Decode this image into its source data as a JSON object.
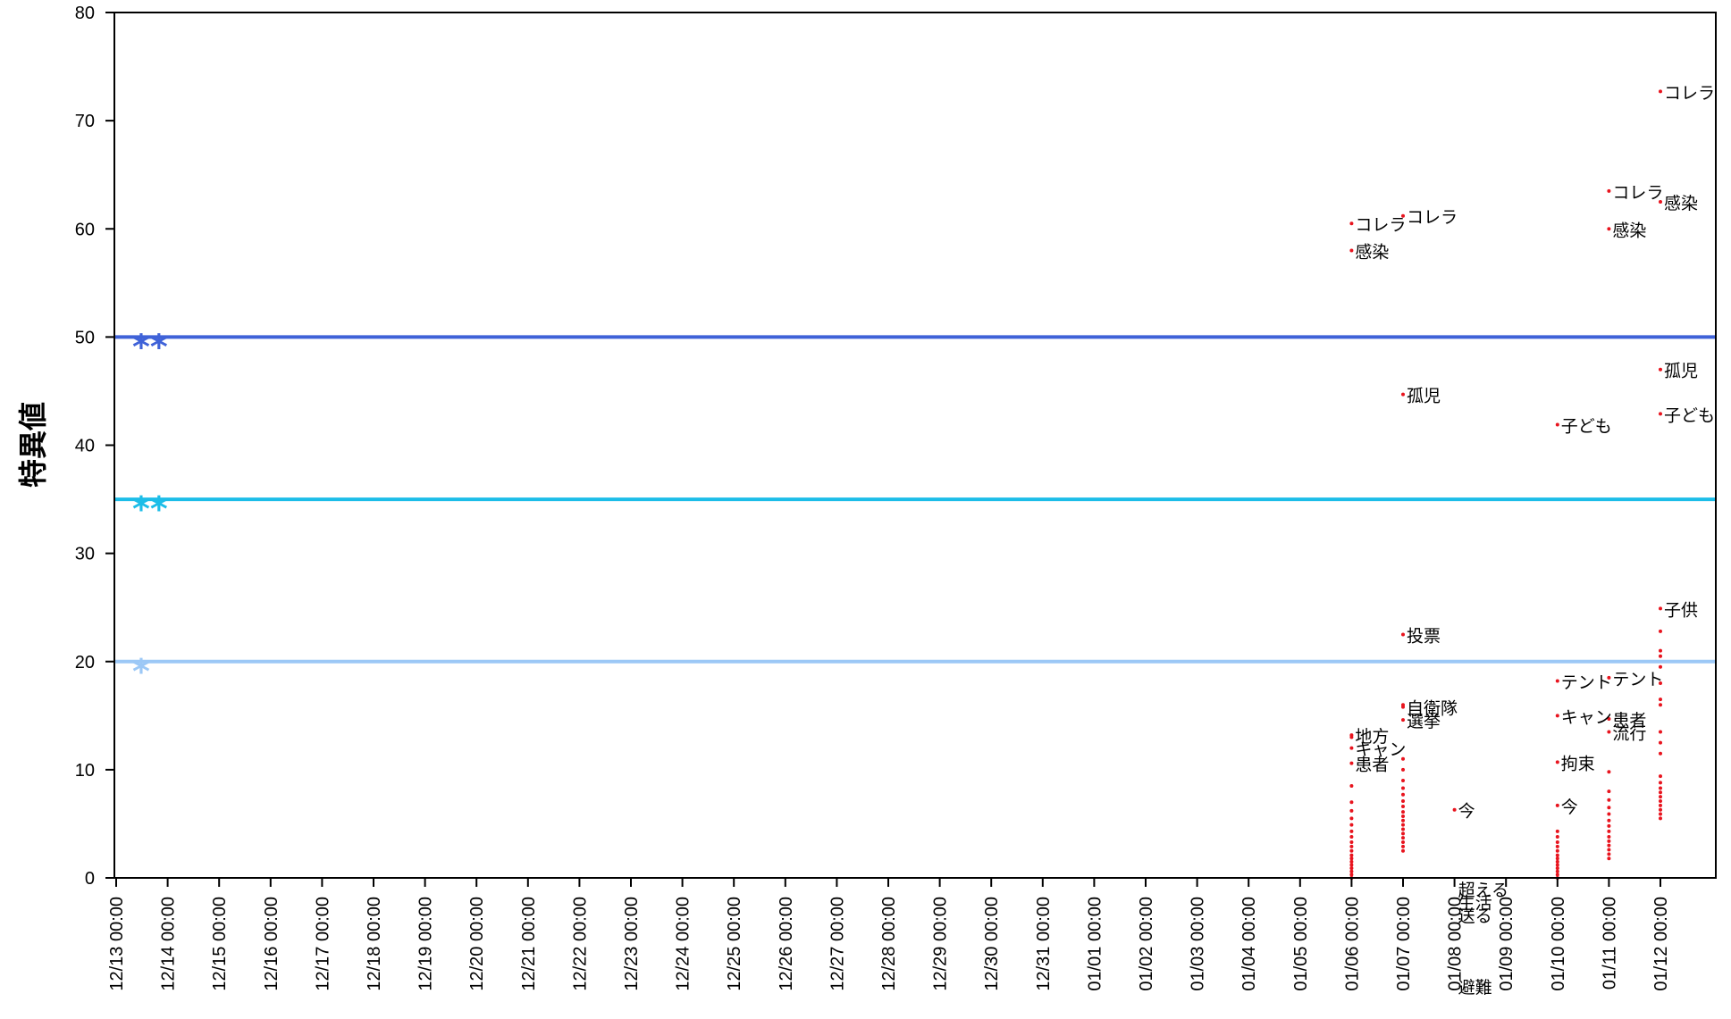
{
  "chart_data": {
    "type": "scatter",
    "title": "",
    "xlabel": "",
    "ylabel": "特異値",
    "ylim": [
      0,
      80
    ],
    "yticks": [
      0,
      10,
      20,
      30,
      40,
      50,
      60,
      70,
      80
    ],
    "grid": false,
    "categories": [
      "12/13 00:00",
      "12/14 00:00",
      "12/15 00:00",
      "12/16 00:00",
      "12/17 00:00",
      "12/18 00:00",
      "12/19 00:00",
      "12/20 00:00",
      "12/21 00:00",
      "12/22 00:00",
      "12/23 00:00",
      "12/24 00:00",
      "12/25 00:00",
      "12/26 00:00",
      "12/27 00:00",
      "12/28 00:00",
      "12/29 00:00",
      "12/30 00:00",
      "12/31 00:00",
      "01/01 00:00",
      "01/02 00:00",
      "01/03 00:00",
      "01/04 00:00",
      "01/05 00:00",
      "01/06 00:00",
      "01/07 00:00",
      "01/08 00:00",
      "01/09 00:00",
      "01/10 00:00",
      "01/11 00:00",
      "01/12 00:00"
    ],
    "thresholds": [
      {
        "value": 50,
        "mark": "**",
        "color": "#3f62d8"
      },
      {
        "value": 35,
        "mark": "**",
        "color": "#1cbde8"
      },
      {
        "value": 20,
        "mark": "*",
        "color": "#9cc8f6"
      }
    ],
    "point_color": "#e8141e",
    "labeled_points": [
      {
        "x": "01/06 00:00",
        "y": 60.5,
        "label": "コレラ"
      },
      {
        "x": "01/06 00:00",
        "y": 58.0,
        "label": "感染"
      },
      {
        "x": "01/06 00:00",
        "y": 13.2,
        "label": "地方"
      },
      {
        "x": "01/06 00:00",
        "y": 12.0,
        "label": "キャン"
      },
      {
        "x": "01/06 00:00",
        "y": 10.6,
        "label": "患者"
      },
      {
        "x": "01/07 00:00",
        "y": 61.2,
        "label": "コレラ"
      },
      {
        "x": "01/07 00:00",
        "y": 44.7,
        "label": "孤児"
      },
      {
        "x": "01/07 00:00",
        "y": 22.5,
        "label": "投票"
      },
      {
        "x": "01/07 00:00",
        "y": 15.8,
        "label": "自衛隊"
      },
      {
        "x": "01/07 00:00",
        "y": 14.6,
        "label": "選挙"
      },
      {
        "x": "01/08 00:00",
        "y": 6.3,
        "label": "今"
      },
      {
        "x": "01/08 00:00",
        "y": -1.0,
        "label": "超える"
      },
      {
        "x": "01/08 00:00",
        "y": -2.2,
        "label": "生活"
      },
      {
        "x": "01/08 00:00",
        "y": -3.4,
        "label": "送る"
      },
      {
        "x": "01/08 00:00",
        "y": -10.0,
        "label": "避難"
      },
      {
        "x": "01/10 00:00",
        "y": 41.9,
        "label": "子ども"
      },
      {
        "x": "01/10 00:00",
        "y": 18.2,
        "label": "テント"
      },
      {
        "x": "01/10 00:00",
        "y": 15.0,
        "label": "キャン"
      },
      {
        "x": "01/10 00:00",
        "y": 10.7,
        "label": "拘束"
      },
      {
        "x": "01/10 00:00",
        "y": 6.7,
        "label": "今"
      },
      {
        "x": "01/11 00:00",
        "y": 63.5,
        "label": "コレラ"
      },
      {
        "x": "01/11 00:00",
        "y": 60.0,
        "label": "感染"
      },
      {
        "x": "01/11 00:00",
        "y": 18.5,
        "label": "テント"
      },
      {
        "x": "01/11 00:00",
        "y": 14.7,
        "label": "患者"
      },
      {
        "x": "01/11 00:00",
        "y": 13.5,
        "label": "流行"
      },
      {
        "x": "01/12 00:00",
        "y": 72.7,
        "label": "コレラ"
      },
      {
        "x": "01/12 00:00",
        "y": 62.5,
        "label": "感染"
      },
      {
        "x": "01/12 00:00",
        "y": 47.0,
        "label": "孤児"
      },
      {
        "x": "01/12 00:00",
        "y": 42.9,
        "label": "子ども"
      },
      {
        "x": "01/12 00:00",
        "y": 24.9,
        "label": "子供"
      }
    ],
    "unlabeled_points": [
      {
        "x": "01/06 00:00",
        "y": [
          0,
          0.3,
          0.6,
          0.9,
          1.2,
          1.5,
          1.8,
          2.1,
          2.5,
          2.9,
          3.3,
          3.8,
          4.3,
          4.9,
          5.5,
          6.2,
          7.0,
          8.5,
          13.0
        ]
      },
      {
        "x": "01/07 00:00",
        "y": [
          2.5,
          2.9,
          3.3,
          3.7,
          4.1,
          4.5,
          4.9,
          5.3,
          5.7,
          6.1,
          6.6,
          7.1,
          7.7,
          8.3,
          9.0,
          10.0,
          11.0,
          16.0
        ]
      },
      {
        "x": "01/10 00:00",
        "y": [
          0,
          0.3,
          0.6,
          0.9,
          1.2,
          1.5,
          1.8,
          2.1,
          2.5,
          2.9,
          3.3,
          3.8,
          4.3
        ]
      },
      {
        "x": "01/11 00:00",
        "y": [
          1.8,
          2.2,
          2.6,
          3.0,
          3.4,
          3.8,
          4.3,
          4.8,
          5.3,
          5.9,
          6.5,
          7.2,
          8.0,
          9.8
        ]
      },
      {
        "x": "01/12 00:00",
        "y": [
          5.5,
          5.9,
          6.3,
          6.7,
          7.1,
          7.5,
          7.9,
          8.3,
          8.8,
          9.4,
          11.5,
          12.5,
          13.5,
          16.0,
          16.5,
          18.0,
          19.5,
          20.5,
          21.0,
          22.8
        ]
      }
    ]
  }
}
